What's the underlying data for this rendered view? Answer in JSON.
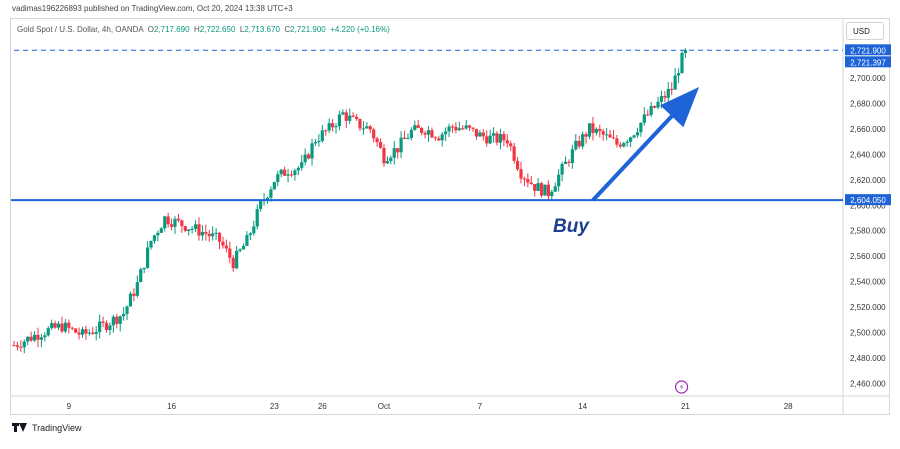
{
  "header": {
    "published_by": "vadimas196226893 published on TradingView.com, Oct 20, 2024 13:38 UTC+3"
  },
  "legend": {
    "symbol": "Gold Spot / U.S. Dollar, 4h, OANDA",
    "o_label": "O",
    "o_value": "2,717.690",
    "h_label": "H",
    "h_value": "2,722.650",
    "l_label": "L",
    "l_value": "2,713.670",
    "c_label": "C",
    "c_value": "2,721.900",
    "change": "+4.220 (+0.16%)"
  },
  "currency_button": "USD",
  "footer": {
    "brand": "TradingView"
  },
  "colors": {
    "up": "#089981",
    "down": "#f23645",
    "level": "#1e63d8",
    "arrow": "#1e63d8",
    "annotation": "#1e3f8f",
    "current_price_bg": "#1e63d8"
  },
  "chart_data": {
    "type": "candlestick",
    "title": "",
    "ylim": [
      2450,
      2730
    ],
    "y_ticks": [
      "2,460.000",
      "2,480.000",
      "2,500.000",
      "2,520.000",
      "2,540.000",
      "2,560.000",
      "2,580.000",
      "2,600.000",
      "2,620.000",
      "2,640.000",
      "2,660.000",
      "2,680.000",
      "2,700.000"
    ],
    "y_tick_values": [
      2460,
      2480,
      2500,
      2520,
      2540,
      2560,
      2580,
      2600,
      2620,
      2640,
      2660,
      2680,
      2700
    ],
    "x_ticks": [
      "9",
      "16",
      "23",
      "26",
      "Oct",
      "7",
      "14",
      "21",
      "28"
    ],
    "x_tick_positions": [
      8,
      23,
      38,
      45,
      54,
      68,
      83,
      98,
      113
    ],
    "x_range": [
      0,
      121
    ],
    "last_candle_index": 98,
    "trend_points": [
      [
        0,
        2490
      ],
      [
        4,
        2500
      ],
      [
        7,
        2505
      ],
      [
        10,
        2498
      ],
      [
        13,
        2505
      ],
      [
        16,
        2515
      ],
      [
        18,
        2538
      ],
      [
        20,
        2572
      ],
      [
        22,
        2590
      ],
      [
        24,
        2586
      ],
      [
        26,
        2582
      ],
      [
        28,
        2578
      ],
      [
        30,
        2572
      ],
      [
        32,
        2555
      ],
      [
        34,
        2572
      ],
      [
        36,
        2600
      ],
      [
        38,
        2620
      ],
      [
        40,
        2628
      ],
      [
        42,
        2630
      ],
      [
        44,
        2652
      ],
      [
        46,
        2660
      ],
      [
        48,
        2672
      ],
      [
        50,
        2664
      ],
      [
        52,
        2660
      ],
      [
        54,
        2638
      ],
      [
        56,
        2645
      ],
      [
        58,
        2658
      ],
      [
        60,
        2660
      ],
      [
        62,
        2655
      ],
      [
        64,
        2662
      ],
      [
        66,
        2660
      ],
      [
        68,
        2655
      ],
      [
        70,
        2652
      ],
      [
        72,
        2652
      ],
      [
        74,
        2626
      ],
      [
        76,
        2615
      ],
      [
        78,
        2610
      ],
      [
        80,
        2628
      ],
      [
        82,
        2646
      ],
      [
        84,
        2660
      ],
      [
        86,
        2655
      ],
      [
        88,
        2648
      ],
      [
        90,
        2655
      ],
      [
        92,
        2668
      ],
      [
        94,
        2680
      ],
      [
        96,
        2692
      ],
      [
        97,
        2708
      ],
      [
        98,
        2721.9
      ]
    ],
    "horizontal_level": {
      "value": 2604.05,
      "label": "2,604.050"
    },
    "current_price": {
      "value": 2721.9,
      "label": "2,721.900"
    },
    "secondary_price": {
      "value": 2721.397,
      "label": "2,721.397"
    },
    "annotation_text": "Buy",
    "arrow": {
      "from": [
        84.5,
        2604
      ],
      "to": [
        100,
        2693
      ]
    },
    "event_marker": {
      "x": 97,
      "symbol": "⚡"
    }
  }
}
